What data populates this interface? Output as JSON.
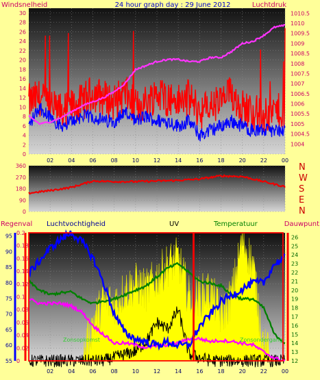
{
  "chart_data": [
    {
      "type": "line",
      "title": "24 hour graph day : 29 June 2012",
      "ylabel_left": "Windsnelheid",
      "ylabel_right": "Luchtdruk",
      "x_ticks": [
        "02",
        "04",
        "06",
        "08",
        "10",
        "12",
        "14",
        "16",
        "18",
        "20",
        "22",
        "00"
      ],
      "ylim_left": [
        0,
        31
      ],
      "yticks_left": [
        "0",
        "2",
        "4",
        "6",
        "8",
        "10",
        "12",
        "14",
        "16",
        "18",
        "20",
        "22",
        "24",
        "26",
        "28",
        "30"
      ],
      "ylim_right": [
        1003.5,
        1010.75
      ],
      "yticks_right": [
        "1004",
        "1004.5",
        "1005",
        "1005.5",
        "1006",
        "1006.5",
        "1007",
        "1007.5",
        "1008",
        "1008.5",
        "1009",
        "1009.5",
        "1010",
        "1010.5"
      ],
      "hours": [
        0,
        1,
        2,
        3,
        4,
        5,
        6,
        7,
        8,
        9,
        10,
        11,
        12,
        13,
        14,
        15,
        16,
        17,
        18,
        19,
        20,
        21,
        22,
        23,
        24
      ],
      "series": [
        {
          "axis": "left",
          "color": "#ff0000",
          "values": [
            11,
            12,
            10,
            9,
            10,
            11,
            13,
            12,
            11,
            13,
            10,
            11,
            13,
            12,
            11,
            12,
            9,
            10,
            11,
            13,
            10,
            9,
            8,
            9,
            9
          ]
        },
        {
          "axis": "left",
          "color": "#0000ff",
          "values": [
            6,
            10,
            8,
            6,
            7,
            8,
            8,
            7,
            7,
            9,
            7,
            8,
            7,
            7,
            6,
            7,
            4,
            5,
            6,
            7,
            6,
            5,
            5,
            5,
            5
          ]
        },
        {
          "axis": "right",
          "color": "#ff33ff",
          "values": [
            1005.4,
            1005.0,
            1005.1,
            1005.3,
            1005.6,
            1005.9,
            1006.1,
            1006.3,
            1006.6,
            1007.0,
            1007.7,
            1007.9,
            1008.1,
            1008.2,
            1008.2,
            1008.1,
            1008.1,
            1008.3,
            1008.3,
            1008.6,
            1009.0,
            1009.1,
            1009.4,
            1009.8,
            1009.9
          ]
        }
      ]
    },
    {
      "type": "line",
      "ylim": [
        0,
        360
      ],
      "yticks": [
        "0",
        "90",
        "180",
        "270",
        "360"
      ],
      "direction_labels": [
        "N",
        "W",
        "S",
        "E",
        "N"
      ],
      "hours": [
        0,
        2,
        4,
        6,
        8,
        10,
        12,
        14,
        16,
        18,
        20,
        22,
        24
      ],
      "values": [
        145,
        165,
        190,
        240,
        235,
        235,
        240,
        245,
        255,
        280,
        275,
        235,
        195
      ],
      "color": "#ff0000"
    },
    {
      "type": "line",
      "legend": [
        "Regenval",
        "Luchtvochtigheid",
        "UV",
        "Temperatuur",
        "Dauwpunt"
      ],
      "annotations": [
        "Zonsopkomst",
        "Zonsondergang"
      ],
      "ylim_rain": [
        0,
        0.2
      ],
      "yticks_rain": [
        "0",
        "0.02",
        "0.04",
        "0.06",
        "0.08",
        "0.1",
        "0.12",
        "0.14",
        "0.16",
        "0.18",
        "0.2"
      ],
      "ylim_humidity": [
        55,
        96
      ],
      "yticks_humidity": [
        "55",
        "60",
        "65",
        "70",
        "75",
        "80",
        "85",
        "90",
        "95"
      ],
      "ylim_temp": [
        12,
        26.5
      ],
      "yticks_temp": [
        "12",
        "13",
        "14",
        "15",
        "16",
        "17",
        "18",
        "19",
        "20",
        "21",
        "22",
        "23",
        "24",
        "25",
        "26"
      ],
      "hours": [
        0,
        1,
        2,
        3,
        4,
        5,
        6,
        7,
        8,
        9,
        10,
        11,
        12,
        13,
        14,
        15,
        16,
        17,
        18,
        19,
        20,
        21,
        22,
        23,
        24
      ],
      "series": [
        {
          "name": "Luchtvochtigheid",
          "axis": "humidity",
          "color": "#0000ff",
          "values": [
            83,
            87,
            91,
            94,
            96,
            93,
            88,
            80,
            70,
            64,
            62,
            61,
            60,
            61,
            60,
            60,
            66,
            70,
            74,
            76,
            78,
            80,
            80,
            86,
            88
          ]
        },
        {
          "name": "Temperatuur",
          "axis": "temp",
          "color": "#008000",
          "values": [
            21,
            20,
            19.5,
            19.7,
            19.8,
            19,
            18.5,
            18.8,
            19,
            19.5,
            20,
            20.5,
            21.5,
            22.5,
            23,
            22,
            21,
            20.8,
            20.5,
            19.5,
            19,
            19,
            18,
            15,
            14
          ]
        },
        {
          "name": "Dauwpunt",
          "axis": "temp",
          "color": "#ff00ff",
          "values": [
            19,
            18.5,
            18.5,
            18.5,
            18.2,
            17.5,
            16,
            15,
            14,
            14,
            13.8,
            13.5,
            13.7,
            13.8,
            14,
            14.5,
            14.5,
            14.2,
            14.3,
            14.2,
            14,
            13.8,
            13,
            12.3,
            12
          ]
        },
        {
          "name": "UV",
          "axis": "uv",
          "color": "#ffff00",
          "values": [
            0,
            0,
            0,
            0,
            0,
            0,
            0.3,
            0.45,
            0.45,
            0.55,
            0.6,
            0.55,
            0.65,
            0.75,
            0.8,
            0.5,
            0.5,
            0.55,
            0.35,
            0.5,
            0.95,
            0.75,
            0.1,
            0,
            0
          ]
        },
        {
          "name": "Regenval",
          "axis": "rain",
          "color": "#000000",
          "values": [
            0,
            0,
            0,
            0,
            0,
            0,
            0,
            0,
            0.005,
            0.01,
            0.015,
            0.03,
            0.06,
            0.05,
            0.08,
            0.01,
            0.005,
            0,
            0,
            0,
            0,
            0,
            0,
            0,
            0
          ]
        }
      ]
    }
  ]
}
